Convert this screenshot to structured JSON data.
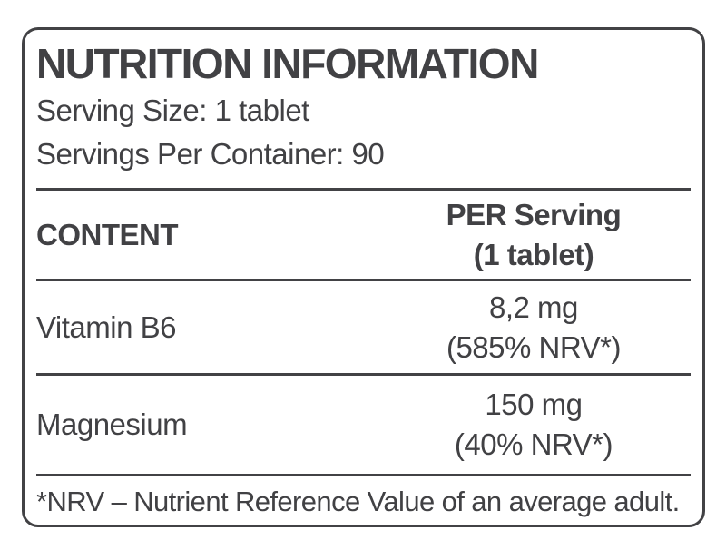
{
  "label": {
    "title": "NUTRITION INFORMATION",
    "serving_size": "Serving Size: 1 tablet",
    "servings_per_container": "Servings Per Container: 90",
    "header": {
      "content_column": "CONTENT",
      "per_serving_line1": "PER Serving",
      "per_serving_line2": "(1 tablet)"
    },
    "rows": [
      {
        "name": "Vitamin B6",
        "amount": "8,2 mg",
        "nrv": "(585% NRV*)"
      },
      {
        "name": "Magnesium",
        "amount": "150 mg",
        "nrv": "(40% NRV*)"
      }
    ],
    "footnote": "*NRV – Nutrient Reference Value of an average adult.",
    "colors": {
      "text": "#414144",
      "border": "#424245",
      "background": "#ffffff"
    }
  }
}
